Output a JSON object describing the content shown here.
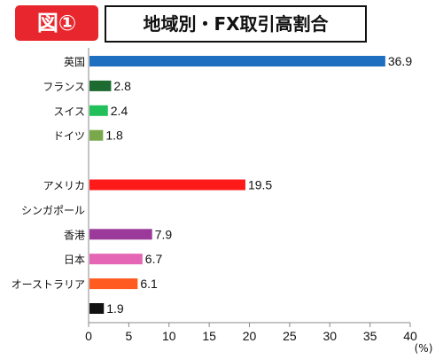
{
  "header": {
    "badge": "図①",
    "title": "地域別・FX取引高割合"
  },
  "colors": {
    "badge_red": "#e8262d",
    "axis": "#888888"
  },
  "chart_data": {
    "type": "bar",
    "orientation": "horizontal",
    "title": "地域別・FX取引高割合",
    "xunit": "(%)",
    "xlim": [
      0,
      40
    ],
    "xticks": [
      0,
      5,
      10,
      15,
      20,
      25,
      30,
      35,
      40
    ],
    "grid": false,
    "categories": [
      "英国",
      "フランス",
      "スイス",
      "ドイツ",
      "",
      "アメリカ",
      "シンガポール",
      "香港",
      "日本",
      "オーストラリア",
      ""
    ],
    "values": [
      36.9,
      2.8,
      2.4,
      1.8,
      null,
      19.5,
      null,
      7.9,
      6.7,
      6.1,
      1.9
    ],
    "value_labels": [
      "36.9",
      "2.8",
      "2.4",
      "1.8",
      "",
      "19.5",
      "",
      "7.9",
      "6.7",
      "6.1",
      "1.9"
    ],
    "colors": [
      "#1f6fc0",
      "#1e6b32",
      "#22c05a",
      "#79a84a",
      "",
      "#ff1a1a",
      "",
      "#9b3a9b",
      "#e466b4",
      "#ff5a1f",
      "#111111"
    ]
  }
}
